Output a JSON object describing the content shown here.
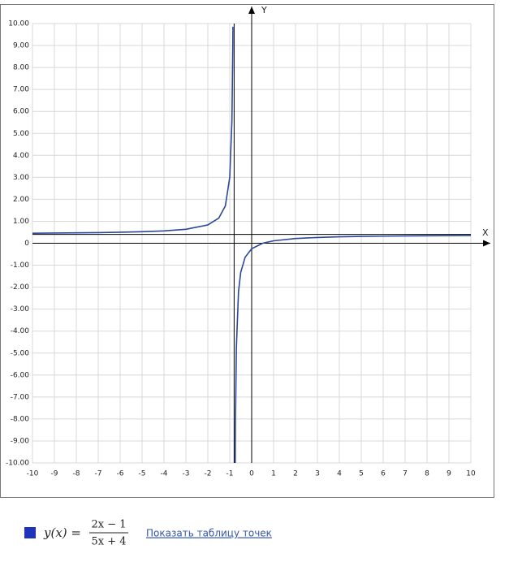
{
  "chart_data": {
    "type": "line",
    "xlabel": "X",
    "ylabel": "Y",
    "xlim": [
      -10,
      10
    ],
    "ylim": [
      -10,
      10
    ],
    "xticks": [
      -10,
      -9,
      -8,
      -7,
      -6,
      -5,
      -4,
      -3,
      -2,
      -1,
      0,
      1,
      2,
      3,
      4,
      5,
      6,
      7,
      8,
      9,
      10
    ],
    "yticks": [
      {
        "value": 10,
        "label": "10.00"
      },
      {
        "value": 9,
        "label": "9.00"
      },
      {
        "value": 8,
        "label": "8.00"
      },
      {
        "value": 7,
        "label": "7.00"
      },
      {
        "value": 6,
        "label": "6.00"
      },
      {
        "value": 5,
        "label": "5.00"
      },
      {
        "value": 4,
        "label": "4.00"
      },
      {
        "value": 3,
        "label": "3.00"
      },
      {
        "value": 2,
        "label": "2.00"
      },
      {
        "value": 1,
        "label": "1.00"
      },
      0,
      {
        "value": -1,
        "label": "-1.00"
      },
      {
        "value": -2,
        "label": "-2.00"
      },
      {
        "value": -3,
        "label": "-3.00"
      },
      {
        "value": -4,
        "label": "-4.00"
      },
      {
        "value": -5,
        "label": "-5.00"
      },
      {
        "value": -6,
        "label": "-6.00"
      },
      {
        "value": -7,
        "label": "-7.00"
      },
      {
        "value": -8,
        "label": "-8.00"
      },
      {
        "value": -9,
        "label": "-9.00"
      },
      {
        "value": -10,
        "label": "-10.00"
      }
    ],
    "grid": true,
    "asymptotes": {
      "x": -0.8,
      "y": 0.4
    },
    "x": [
      -10,
      -9,
      -8,
      -7,
      -6,
      -5,
      -4,
      -3,
      -2,
      -1.5,
      -1.2,
      -1,
      -0.9,
      -0.86,
      -0.855,
      -0.8,
      -0.75,
      -0.74,
      -0.7,
      -0.6,
      -0.5,
      -0.3,
      0,
      0.5,
      1,
      2,
      3,
      4,
      5,
      6,
      8,
      10
    ],
    "series": [
      {
        "name": "y(x) =",
        "numerator": "2x − 1",
        "denominator": "5x + 4",
        "color": "#2a4899",
        "values": [
          0.457,
          0.463,
          0.472,
          0.484,
          0.5,
          0.524,
          0.563,
          0.636,
          0.833,
          1.143,
          1.7,
          3,
          5.6,
          9.067,
          9.855,
          null,
          -10,
          -8.267,
          -4.8,
          -2.2,
          -1.333,
          -0.64,
          -0.25,
          0,
          0.111,
          0.214,
          0.263,
          0.292,
          0.31,
          0.324,
          0.341,
          0.352
        ]
      }
    ],
    "link": "Показать таблицу точек"
  }
}
